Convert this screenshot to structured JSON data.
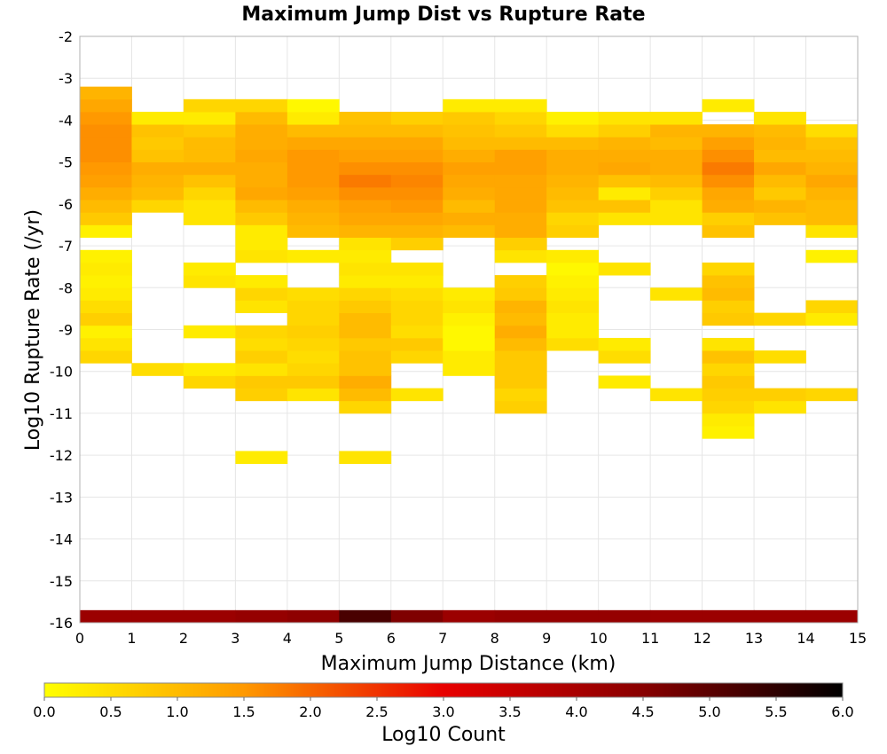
{
  "chart_data": {
    "type": "heatmap",
    "title": "Maximum Jump Dist vs Rupture Rate",
    "xlabel": "Maximum Jump Distance (km)",
    "ylabel": "Log10 Rupture Rate (/yr)",
    "xlim": [
      0,
      15
    ],
    "ylim": [
      -16,
      -2
    ],
    "x_ticks": [
      "0",
      "1",
      "2",
      "3",
      "4",
      "5",
      "6",
      "7",
      "8",
      "9",
      "10",
      "11",
      "12",
      "13",
      "14",
      "15"
    ],
    "y_ticks": [
      "-2",
      "-3",
      "-4",
      "-5",
      "-6",
      "-7",
      "-8",
      "-9",
      "-10",
      "-11",
      "-12",
      "-13",
      "-14",
      "-15",
      "-16"
    ],
    "grid": true,
    "colorbar": {
      "label": "Log10 Count",
      "range": [
        0,
        6
      ],
      "ticks": [
        "0.0",
        "0.5",
        "1.0",
        "1.5",
        "2.0",
        "2.5",
        "3.0",
        "3.5",
        "4.0",
        "4.5",
        "5.0",
        "5.5",
        "6.0"
      ],
      "colors": [
        "#ffff00",
        "#ff9900",
        "#e80000",
        "#880000",
        "#000000"
      ],
      "placement": "bottom"
    },
    "bin_width_x": 1,
    "bin_height_y": 0.3,
    "columns": [
      {
        "x0": 0,
        "cells": [
          [
            -16.0,
            4.2
          ],
          [
            -9.8,
            0.6
          ],
          [
            -9.5,
            0.4
          ],
          [
            -9.2,
            0.2
          ],
          [
            -8.9,
            0.7
          ],
          [
            -8.6,
            0.5
          ],
          [
            -8.3,
            0.3
          ],
          [
            -8.0,
            0.2
          ],
          [
            -7.7,
            0.3
          ],
          [
            -7.4,
            0.2
          ],
          [
            -6.8,
            0.2
          ],
          [
            -6.5,
            0.8
          ],
          [
            -6.2,
            1.0
          ],
          [
            -5.9,
            1.2
          ],
          [
            -5.6,
            1.4
          ],
          [
            -5.3,
            1.5
          ],
          [
            -5.0,
            1.6
          ],
          [
            -4.7,
            1.6
          ],
          [
            -4.4,
            1.6
          ],
          [
            -4.1,
            1.5
          ],
          [
            -3.8,
            1.3
          ],
          [
            -3.5,
            1.1
          ]
        ]
      },
      {
        "x0": 1,
        "cells": [
          [
            -16.0,
            4.2
          ],
          [
            -10.1,
            0.5
          ],
          [
            -6.2,
            0.6
          ],
          [
            -5.9,
            1.0
          ],
          [
            -5.6,
            1.1
          ],
          [
            -5.3,
            1.2
          ],
          [
            -5.0,
            0.9
          ],
          [
            -4.7,
            0.8
          ],
          [
            -4.4,
            0.9
          ],
          [
            -4.1,
            0.3
          ]
        ]
      },
      {
        "x0": 2,
        "cells": [
          [
            -16.0,
            4.2
          ],
          [
            -10.4,
            0.6
          ],
          [
            -10.1,
            0.3
          ],
          [
            -9.2,
            0.3
          ],
          [
            -8.0,
            0.4
          ],
          [
            -7.7,
            0.3
          ],
          [
            -6.5,
            0.4
          ],
          [
            -6.2,
            0.4
          ],
          [
            -5.9,
            0.6
          ],
          [
            -5.6,
            0.9
          ],
          [
            -5.3,
            1.2
          ],
          [
            -5.0,
            1.0
          ],
          [
            -4.7,
            1.0
          ],
          [
            -4.4,
            0.8
          ],
          [
            -4.1,
            0.3
          ],
          [
            -3.8,
            0.6
          ]
        ]
      },
      {
        "x0": 3,
        "cells": [
          [
            -16.0,
            4.3
          ],
          [
            -12.2,
            0.3
          ],
          [
            -10.7,
            0.7
          ],
          [
            -10.4,
            0.8
          ],
          [
            -10.1,
            0.4
          ],
          [
            -9.8,
            0.7
          ],
          [
            -9.5,
            0.5
          ],
          [
            -9.2,
            0.6
          ],
          [
            -8.6,
            0.4
          ],
          [
            -8.3,
            0.6
          ],
          [
            -8.0,
            0.3
          ],
          [
            -7.4,
            0.4
          ],
          [
            -7.1,
            0.3
          ],
          [
            -6.8,
            0.3
          ],
          [
            -6.5,
            0.8
          ],
          [
            -6.2,
            1.0
          ],
          [
            -5.9,
            1.3
          ],
          [
            -5.6,
            1.2
          ],
          [
            -5.3,
            1.2
          ],
          [
            -5.0,
            1.3
          ],
          [
            -4.7,
            1.2
          ],
          [
            -4.4,
            1.2
          ],
          [
            -4.1,
            1.0
          ],
          [
            -3.8,
            0.6
          ]
        ]
      },
      {
        "x0": 4,
        "cells": [
          [
            -16.0,
            4.4
          ],
          [
            -10.7,
            0.4
          ],
          [
            -10.4,
            0.8
          ],
          [
            -10.1,
            0.6
          ],
          [
            -9.8,
            0.5
          ],
          [
            -9.5,
            0.6
          ],
          [
            -9.2,
            0.7
          ],
          [
            -8.9,
            0.6
          ],
          [
            -8.6,
            0.6
          ],
          [
            -8.3,
            0.5
          ],
          [
            -7.4,
            0.3
          ],
          [
            -6.8,
            1.0
          ],
          [
            -6.5,
            1.1
          ],
          [
            -6.2,
            1.2
          ],
          [
            -5.9,
            1.4
          ],
          [
            -5.6,
            1.5
          ],
          [
            -5.3,
            1.5
          ],
          [
            -5.0,
            1.5
          ],
          [
            -4.7,
            1.3
          ],
          [
            -4.4,
            1.0
          ],
          [
            -4.1,
            0.3
          ],
          [
            -3.8,
            0.1
          ]
        ]
      },
      {
        "x0": 5,
        "cells": [
          [
            -16.0,
            5.2
          ],
          [
            -12.2,
            0.4
          ],
          [
            -11.0,
            0.6
          ],
          [
            -10.7,
            1.0
          ],
          [
            -10.4,
            1.2
          ],
          [
            -10.1,
            0.9
          ],
          [
            -9.8,
            0.9
          ],
          [
            -9.5,
            0.8
          ],
          [
            -9.2,
            1.0
          ],
          [
            -8.9,
            1.0
          ],
          [
            -8.6,
            0.8
          ],
          [
            -8.3,
            0.6
          ],
          [
            -8.0,
            0.3
          ],
          [
            -7.7,
            0.4
          ],
          [
            -7.4,
            0.3
          ],
          [
            -7.1,
            0.4
          ],
          [
            -6.8,
            1.1
          ],
          [
            -6.5,
            1.3
          ],
          [
            -6.2,
            1.4
          ],
          [
            -5.9,
            1.6
          ],
          [
            -5.6,
            1.8
          ],
          [
            -5.3,
            1.6
          ],
          [
            -5.0,
            1.4
          ],
          [
            -4.7,
            1.3
          ],
          [
            -4.4,
            1.0
          ],
          [
            -4.1,
            0.9
          ]
        ]
      },
      {
        "x0": 6,
        "cells": [
          [
            -16.0,
            4.6
          ],
          [
            -10.7,
            0.4
          ],
          [
            -9.8,
            0.6
          ],
          [
            -9.5,
            0.8
          ],
          [
            -9.2,
            0.5
          ],
          [
            -8.9,
            0.6
          ],
          [
            -8.6,
            0.6
          ],
          [
            -8.3,
            0.5
          ],
          [
            -8.0,
            0.3
          ],
          [
            -7.7,
            0.4
          ],
          [
            -7.1,
            0.7
          ],
          [
            -6.8,
            1.1
          ],
          [
            -6.5,
            1.3
          ],
          [
            -6.2,
            1.5
          ],
          [
            -5.9,
            1.6
          ],
          [
            -5.6,
            1.7
          ],
          [
            -5.3,
            1.6
          ],
          [
            -5.0,
            1.4
          ],
          [
            -4.7,
            1.3
          ],
          [
            -4.4,
            1.0
          ],
          [
            -4.1,
            0.7
          ]
        ]
      },
      {
        "x0": 7,
        "cells": [
          [
            -16.0,
            4.2
          ],
          [
            -10.1,
            0.3
          ],
          [
            -9.8,
            0.3
          ],
          [
            -9.5,
            0.1
          ],
          [
            -9.2,
            0.1
          ],
          [
            -8.9,
            0.2
          ],
          [
            -8.6,
            0.4
          ],
          [
            -8.3,
            0.3
          ],
          [
            -6.8,
            1.0
          ],
          [
            -6.5,
            1.2
          ],
          [
            -6.2,
            1.0
          ],
          [
            -5.9,
            1.2
          ],
          [
            -5.6,
            1.3
          ],
          [
            -5.3,
            1.4
          ],
          [
            -5.0,
            1.2
          ],
          [
            -4.7,
            1.0
          ],
          [
            -4.4,
            0.9
          ],
          [
            -4.1,
            0.8
          ],
          [
            -3.8,
            0.3
          ]
        ]
      },
      {
        "x0": 8,
        "cells": [
          [
            -16.0,
            4.3
          ],
          [
            -11.0,
            0.7
          ],
          [
            -10.7,
            0.6
          ],
          [
            -10.4,
            0.8
          ],
          [
            -10.1,
            0.8
          ],
          [
            -9.8,
            0.8
          ],
          [
            -9.5,
            1.0
          ],
          [
            -9.2,
            1.2
          ],
          [
            -8.9,
            1.0
          ],
          [
            -8.6,
            1.1
          ],
          [
            -8.3,
            0.8
          ],
          [
            -8.0,
            0.7
          ],
          [
            -7.4,
            0.4
          ],
          [
            -7.1,
            0.7
          ],
          [
            -6.8,
            1.2
          ],
          [
            -6.5,
            1.2
          ],
          [
            -6.2,
            1.3
          ],
          [
            -5.9,
            1.3
          ],
          [
            -5.6,
            1.3
          ],
          [
            -5.3,
            1.4
          ],
          [
            -5.0,
            1.4
          ],
          [
            -4.7,
            1.0
          ],
          [
            -4.4,
            0.8
          ],
          [
            -4.1,
            0.6
          ],
          [
            -3.8,
            0.3
          ]
        ]
      },
      {
        "x0": 9,
        "cells": [
          [
            -16.0,
            4.3
          ],
          [
            -9.5,
            0.5
          ],
          [
            -9.2,
            0.3
          ],
          [
            -8.9,
            0.3
          ],
          [
            -8.6,
            0.4
          ],
          [
            -8.3,
            0.3
          ],
          [
            -8.0,
            0.2
          ],
          [
            -7.7,
            0.1
          ],
          [
            -7.4,
            0.3
          ],
          [
            -6.8,
            0.7
          ],
          [
            -6.5,
            0.6
          ],
          [
            -6.2,
            0.9
          ],
          [
            -5.9,
            1.0
          ],
          [
            -5.6,
            1.1
          ],
          [
            -5.3,
            1.2
          ],
          [
            -5.0,
            1.2
          ],
          [
            -4.7,
            1.0
          ],
          [
            -4.4,
            0.5
          ],
          [
            -4.1,
            0.2
          ]
        ]
      },
      {
        "x0": 10,
        "cells": [
          [
            -16.0,
            4.3
          ],
          [
            -10.4,
            0.3
          ],
          [
            -9.8,
            0.5
          ],
          [
            -9.5,
            0.3
          ],
          [
            -7.7,
            0.4
          ],
          [
            -6.5,
            0.4
          ],
          [
            -6.2,
            0.9
          ],
          [
            -5.9,
            0.3
          ],
          [
            -5.6,
            0.9
          ],
          [
            -5.3,
            1.3
          ],
          [
            -5.0,
            1.2
          ],
          [
            -4.7,
            1.1
          ],
          [
            -4.4,
            0.7
          ],
          [
            -4.1,
            0.4
          ]
        ]
      },
      {
        "x0": 11,
        "cells": [
          [
            -16.0,
            4.2
          ],
          [
            -10.7,
            0.4
          ],
          [
            -8.3,
            0.4
          ],
          [
            -6.5,
            0.4
          ],
          [
            -6.2,
            0.4
          ],
          [
            -5.9,
            0.7
          ],
          [
            -5.6,
            1.0
          ],
          [
            -5.3,
            1.2
          ],
          [
            -5.0,
            1.2
          ],
          [
            -4.7,
            1.0
          ],
          [
            -4.4,
            1.1
          ],
          [
            -4.1,
            0.4
          ]
        ]
      },
      {
        "x0": 12,
        "cells": [
          [
            -16.0,
            4.2
          ],
          [
            -11.6,
            0.2
          ],
          [
            -11.3,
            0.3
          ],
          [
            -11.0,
            0.6
          ],
          [
            -10.7,
            0.7
          ],
          [
            -10.4,
            0.8
          ],
          [
            -10.1,
            0.6
          ],
          [
            -9.8,
            0.9
          ],
          [
            -9.5,
            0.4
          ],
          [
            -8.9,
            0.8
          ],
          [
            -8.6,
            0.7
          ],
          [
            -8.3,
            1.0
          ],
          [
            -8.0,
            0.9
          ],
          [
            -7.7,
            0.6
          ],
          [
            -6.8,
            0.9
          ],
          [
            -6.5,
            0.7
          ],
          [
            -6.2,
            1.2
          ],
          [
            -5.9,
            1.3
          ],
          [
            -5.6,
            1.6
          ],
          [
            -5.3,
            1.8
          ],
          [
            -5.0,
            1.6
          ],
          [
            -4.7,
            1.4
          ],
          [
            -4.4,
            1.1
          ],
          [
            -3.8,
            0.3
          ]
        ]
      },
      {
        "x0": 13,
        "cells": [
          [
            -16.0,
            4.2
          ],
          [
            -11.0,
            0.4
          ],
          [
            -10.7,
            0.7
          ],
          [
            -9.8,
            0.5
          ],
          [
            -8.9,
            0.6
          ],
          [
            -6.5,
            0.9
          ],
          [
            -6.2,
            1.1
          ],
          [
            -5.9,
            0.8
          ],
          [
            -5.6,
            1.0
          ],
          [
            -5.3,
            1.3
          ],
          [
            -5.0,
            1.0
          ],
          [
            -4.7,
            1.1
          ],
          [
            -4.4,
            1.0
          ],
          [
            -4.1,
            0.4
          ]
        ]
      },
      {
        "x0": 14,
        "cells": [
          [
            -16.0,
            4.2
          ],
          [
            -10.7,
            0.6
          ],
          [
            -8.9,
            0.3
          ],
          [
            -8.6,
            0.6
          ],
          [
            -7.4,
            0.2
          ],
          [
            -6.8,
            0.4
          ],
          [
            -6.5,
            1.0
          ],
          [
            -6.2,
            1.0
          ],
          [
            -5.9,
            1.1
          ],
          [
            -5.6,
            1.3
          ],
          [
            -5.3,
            1.1
          ],
          [
            -5.0,
            1.0
          ],
          [
            -4.7,
            0.9
          ],
          [
            -4.4,
            0.5
          ]
        ]
      }
    ]
  }
}
